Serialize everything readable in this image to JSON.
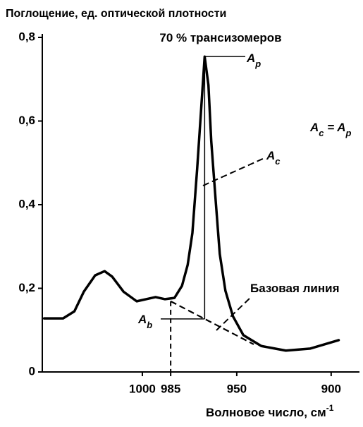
{
  "chart_data": {
    "type": "line",
    "title": "Поглощение, ед. оптической плотности",
    "x_label": [
      {
        "text": "Волновое число, см"
      },
      {
        "text": "-1",
        "sup": true
      }
    ],
    "x": [
      1052,
      1042,
      1036,
      1031,
      1025,
      1020,
      1016,
      1010,
      1003,
      997,
      993,
      988,
      983,
      979,
      976,
      973.5,
      971,
      969,
      967,
      965,
      963.5,
      961,
      959,
      956,
      952,
      946.5,
      937,
      924,
      911,
      896
    ],
    "values": [
      0.128,
      0.128,
      0.145,
      0.192,
      0.231,
      0.241,
      0.228,
      0.192,
      0.169,
      0.175,
      0.179,
      0.174,
      0.177,
      0.206,
      0.256,
      0.332,
      0.484,
      0.619,
      0.754,
      0.686,
      0.551,
      0.4,
      0.282,
      0.194,
      0.133,
      0.088,
      0.062,
      0.051,
      0.056,
      0.076
    ],
    "color": "#000000",
    "baseline": {
      "x": [
        985,
        941
      ],
      "values": [
        0.169,
        0.066
      ]
    },
    "xlim": [
      1053,
      885
    ],
    "xticks": [
      1000,
      985,
      950,
      900
    ],
    "ylim": [
      0,
      0.8
    ],
    "yticks": [
      0,
      {
        "value": 0.2,
        "label": "0,2"
      },
      {
        "value": 0.4,
        "label": "0,4"
      },
      {
        "value": 0.6,
        "label": "0,6"
      },
      {
        "value": 0.8,
        "label": "0,8"
      }
    ],
    "annotations": [
      {
        "parts": [
          {
            "text": "70 % трансизомеров"
          }
        ]
      },
      {
        "parts": [
          {
            "text": "A"
          },
          {
            "text": "p",
            "sub": true
          }
        ]
      },
      {
        "parts": [
          {
            "text": "A"
          },
          {
            "text": "c",
            "sub": true
          },
          {
            "text": " = A"
          },
          {
            "text": "p",
            "sub": true
          }
        ]
      },
      {
        "parts": [
          {
            "text": "A"
          },
          {
            "text": "c",
            "sub": true
          }
        ]
      },
      {
        "parts": [
          {
            "text": "A"
          },
          {
            "text": "b",
            "sub": true
          }
        ]
      },
      {
        "parts": [
          {
            "text": "Базовая линия"
          }
        ]
      }
    ]
  }
}
